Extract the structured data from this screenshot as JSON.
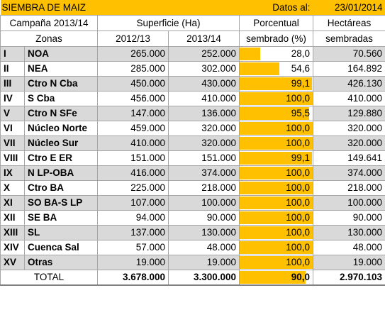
{
  "title": "SIEMBRA DE MAIZ",
  "datos_label": "Datos al:",
  "datos_fecha": "23/01/2014",
  "header": {
    "campana": "Campaña 2013/14",
    "superficie": "Superficie (Ha)",
    "porcentual_1": "Porcentual",
    "porcentual_2": "sembrado (%)",
    "hectareas_1": "Hectáreas",
    "hectareas_2": "sembradas",
    "zonas": "Zonas",
    "y2012": "2012/13",
    "y2013": "2013/14"
  },
  "rows": [
    {
      "num": "I",
      "zona": "NOA",
      "s2012": "265.000",
      "s2013": "252.000",
      "pct": "28,0",
      "pct_value": 28.0,
      "ha": "70.560"
    },
    {
      "num": "II",
      "zona": "NEA",
      "s2012": "285.000",
      "s2013": "302.000",
      "pct": "54,6",
      "pct_value": 54.6,
      "ha": "164.892"
    },
    {
      "num": "III",
      "zona": "Ctro N Cba",
      "s2012": "450.000",
      "s2013": "430.000",
      "pct": "99,1",
      "pct_value": 99.1,
      "ha": "426.130"
    },
    {
      "num": "IV",
      "zona": "S Cba",
      "s2012": "456.000",
      "s2013": "410.000",
      "pct": "100,0",
      "pct_value": 100.0,
      "ha": "410.000"
    },
    {
      "num": "V",
      "zona": "Ctro N SFe",
      "s2012": "147.000",
      "s2013": "136.000",
      "pct": "95,5",
      "pct_value": 95.5,
      "ha": "129.880"
    },
    {
      "num": "VI",
      "zona": "Núcleo Norte",
      "s2012": "459.000",
      "s2013": "320.000",
      "pct": "100,0",
      "pct_value": 100.0,
      "ha": "320.000"
    },
    {
      "num": "VII",
      "zona": "Núcleo Sur",
      "s2012": "410.000",
      "s2013": "320.000",
      "pct": "100,0",
      "pct_value": 100.0,
      "ha": "320.000"
    },
    {
      "num": "VIII",
      "zona": "Ctro E ER",
      "s2012": "151.000",
      "s2013": "151.000",
      "pct": "99,1",
      "pct_value": 99.1,
      "ha": "149.641"
    },
    {
      "num": "IX",
      "zona": "N LP-OBA",
      "s2012": "416.000",
      "s2013": "374.000",
      "pct": "100,0",
      "pct_value": 100.0,
      "ha": "374.000"
    },
    {
      "num": "X",
      "zona": "Ctro BA",
      "s2012": "225.000",
      "s2013": "218.000",
      "pct": "100,0",
      "pct_value": 100.0,
      "ha": "218.000"
    },
    {
      "num": "XI",
      "zona": "SO BA-S LP",
      "s2012": "107.000",
      "s2013": "100.000",
      "pct": "100,0",
      "pct_value": 100.0,
      "ha": "100.000"
    },
    {
      "num": "XII",
      "zona": "SE BA",
      "s2012": "94.000",
      "s2013": "90.000",
      "pct": "100,0",
      "pct_value": 100.0,
      "ha": "90.000"
    },
    {
      "num": "XIII",
      "zona": "SL",
      "s2012": "137.000",
      "s2013": "130.000",
      "pct": "100,0",
      "pct_value": 100.0,
      "ha": "130.000"
    },
    {
      "num": "XIV",
      "zona": "Cuenca Sal",
      "s2012": "57.000",
      "s2013": "48.000",
      "pct": "100,0",
      "pct_value": 100.0,
      "ha": "48.000"
    },
    {
      "num": "XV",
      "zona": "Otras",
      "s2012": "19.000",
      "s2013": "19.000",
      "pct": "100,0",
      "pct_value": 100.0,
      "ha": "19.000"
    }
  ],
  "total": {
    "label": "TOTAL",
    "s2012": "3.678.000",
    "s2013": "3.300.000",
    "pct": "90,0",
    "pct_value": 90.0,
    "ha": "2.970.103"
  },
  "colors": {
    "accent": "#ffc000",
    "row_shade": "#d9d9d9"
  }
}
